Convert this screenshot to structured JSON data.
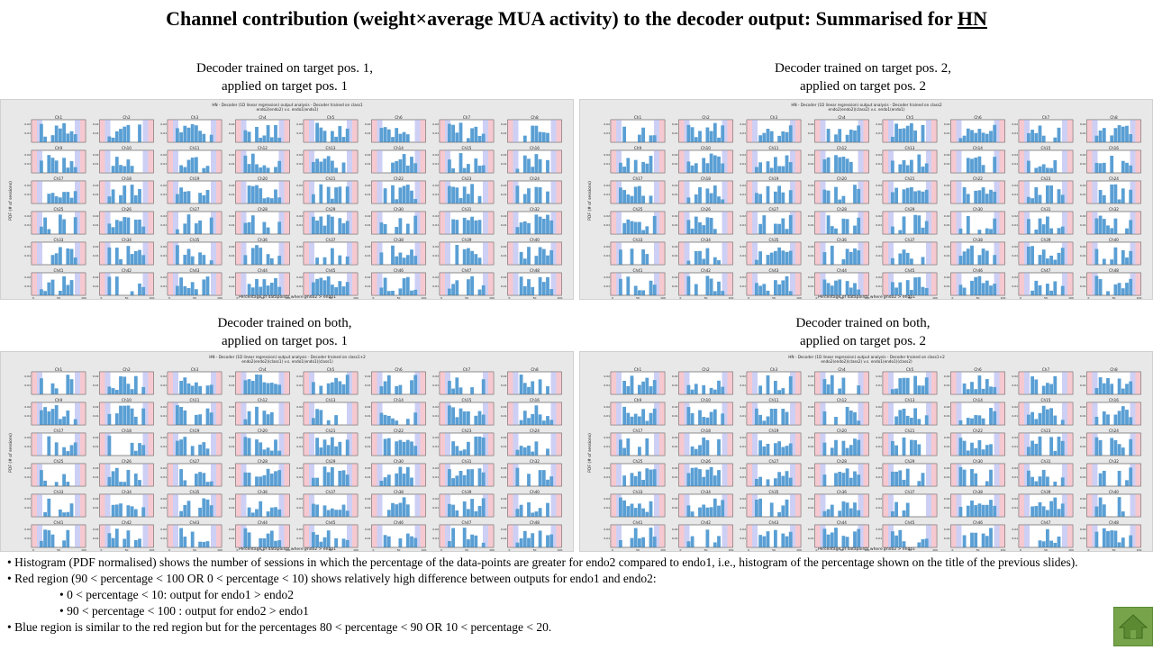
{
  "slide": {
    "title_main": "Channel contribution (weight×average MUA activity) to the decoder output: Summarised for ",
    "title_subject": "HN"
  },
  "panels": [
    {
      "caption_line1": "Decoder trained  on target pos. 1,",
      "caption_line2": "applied  on target pos. 1",
      "figure_title_line1": "HN - Decoder (1D linear regression) output analysis - Decoder trained on class1",
      "figure_title_line2": "endo2(endo2) v.s. endo1(endo1)"
    },
    {
      "caption_line1": "Decoder trained  on target pos. 2,",
      "caption_line2": "applied  on target pos. 2",
      "figure_title_line1": "HN - Decoder (1D linear regression) output analysis - Decoder trained on class2",
      "figure_title_line2": "endo2(endo2)(class2) v.s. endo1(endo1)"
    },
    {
      "caption_line1": "Decoder trained  on both,",
      "caption_line2": "applied  on target pos. 1",
      "figure_title_line1": "HN - Decoder (1D linear regression) output analysis - Decoder trained on class1+2",
      "figure_title_line2": "endo2(endo2)(class1) v.s. endo1(endo1)(class1)"
    },
    {
      "caption_line1": "Decoder trained  on both,",
      "caption_line2": "applied  on target pos. 2",
      "figure_title_line1": "HN - Decoder (1D linear regression) output analysis - Decoder trained on class1+2",
      "figure_title_line2": "endo2(endo2)(class2) v.s. endo1(endo1)(class2)"
    }
  ],
  "figure": {
    "ylabel": "PDF (# of sessions)",
    "xlabel": "Percentage of datapoints where endo2 > endo1",
    "xtick_labels": [
      "0",
      "50",
      "100"
    ],
    "ytick_labels": [
      "0.02",
      "0.01"
    ],
    "channel_labels": [
      "Ch1",
      "Ch2",
      "Ch3",
      "Ch4",
      "Ch5",
      "Ch6",
      "Ch7",
      "Ch8",
      "Ch9",
      "Ch10",
      "Ch11",
      "Ch12",
      "Ch13",
      "Ch14",
      "Ch15",
      "Ch16",
      "Ch17",
      "Ch18",
      "Ch19",
      "Ch20",
      "Ch21",
      "Ch22",
      "Ch23",
      "Ch24",
      "Ch25",
      "Ch26",
      "Ch27",
      "Ch28",
      "Ch29",
      "Ch30",
      "Ch31",
      "Ch32",
      "Ch33",
      "Ch34",
      "Ch35",
      "Ch36",
      "Ch37",
      "Ch38",
      "Ch39",
      "Ch40",
      "Ch41",
      "Ch42",
      "Ch43",
      "Ch44",
      "Ch45",
      "Ch46",
      "Ch47",
      "Ch48"
    ],
    "colors": {
      "bar": "#5a9fd4",
      "red_region": "#f6c9d0",
      "blue_region": "#cdd0f4",
      "axes_bg": "#ffffff"
    }
  },
  "bullets": {
    "b1": "• Histogram (PDF normalised) shows the number of sessions in which the percentage of the data-points are greater for endo2 compared to endo1, i.e., histogram of the percentage shown on the title of the previous slides).",
    "b2": "• Red region (90 < percentage < 100  OR 0 < percentage < 10) shows relatively high difference between outputs for endo1  and endo2:",
    "b2a": "• 0 < percentage < 10:  output  for endo1 > endo2",
    "b2b": "• 90 < percentage < 100 : output  for endo2 > endo1",
    "b3": "• Blue region is similar  to the red region but for the percentages 80 < percentage < 90 OR 10 < percentage < 20."
  },
  "nav": {
    "home_icon": "home-icon"
  }
}
